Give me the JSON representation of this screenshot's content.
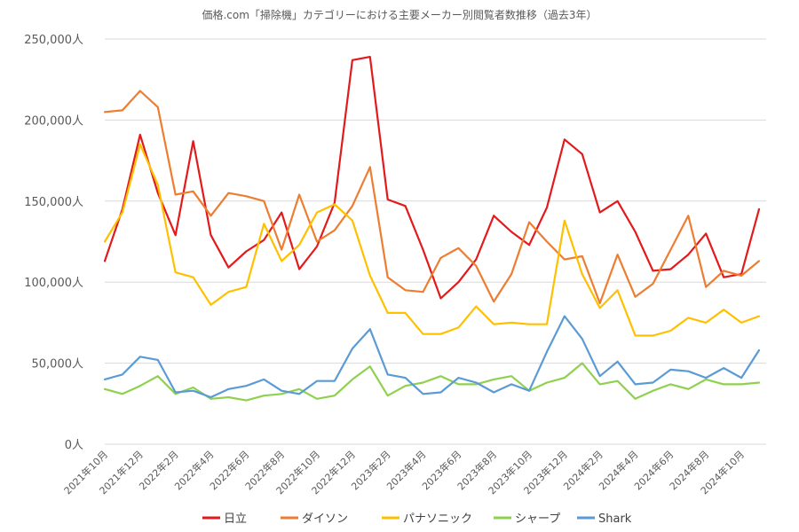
{
  "chart_data": {
    "type": "line",
    "title": "価格.com「掃除機」カテゴリーにおける主要メーカー別閲覧者数推移（過去3年）",
    "xlabel": "",
    "ylabel": "",
    "ylim": [
      0,
      250000
    ],
    "ytick_labels": [
      "0人",
      "50,000人",
      "100,000人",
      "150,000人",
      "200,000人",
      "250,000人"
    ],
    "ytick_values": [
      0,
      50000,
      100000,
      150000,
      200000,
      250000
    ],
    "grid": true,
    "legend_position": "bottom",
    "xtick_labels": [
      "2021年10月",
      "2021年12月",
      "2022年2月",
      "2022年4月",
      "2022年6月",
      "2022年8月",
      "2022年10月",
      "2022年12月",
      "2023年2月",
      "2023年4月",
      "2023年6月",
      "2023年8月",
      "2023年10月",
      "2023年12月",
      "2024年2月",
      "2024年4月",
      "2024年6月",
      "2024年8月",
      "2024年10月"
    ],
    "x": [
      "2021-10",
      "2021-11",
      "2021-12",
      "2022-01",
      "2022-02",
      "2022-03",
      "2022-04",
      "2022-05",
      "2022-06",
      "2022-07",
      "2022-08",
      "2022-09",
      "2022-10",
      "2022-11",
      "2022-12",
      "2023-01",
      "2023-02",
      "2023-03",
      "2023-04",
      "2023-05",
      "2023-06",
      "2023-07",
      "2023-08",
      "2023-09",
      "2023-10",
      "2023-11",
      "2023-12",
      "2024-01",
      "2024-02",
      "2024-03",
      "2024-04",
      "2024-05",
      "2024-06",
      "2024-07",
      "2024-08",
      "2024-09",
      "2024-10",
      "2024-11"
    ],
    "series": [
      {
        "name": "日立",
        "color": "#e31a1c",
        "values": [
          113000,
          145000,
          191000,
          155000,
          129000,
          187000,
          129000,
          109000,
          119000,
          126000,
          143000,
          108000,
          122000,
          149000,
          237000,
          239000,
          151000,
          147000,
          120000,
          90000,
          100000,
          114000,
          141000,
          131000,
          123000,
          146000,
          188000,
          179000,
          143000,
          150000,
          131000,
          107000,
          108000,
          117000,
          130000,
          103000,
          105000,
          145000
        ]
      },
      {
        "name": "ダイソン",
        "color": "#ed7d31",
        "values": [
          205000,
          206000,
          218000,
          208000,
          154000,
          156000,
          141000,
          155000,
          153000,
          150000,
          120000,
          154000,
          125000,
          132000,
          147000,
          171000,
          103000,
          95000,
          94000,
          115000,
          121000,
          110000,
          88000,
          105000,
          137000,
          125000,
          114000,
          116000,
          87000,
          117000,
          91000,
          99000,
          120000,
          141000,
          97000,
          107000,
          104000,
          113000
        ]
      },
      {
        "name": "パナソニック",
        "color": "#ffc000",
        "values": [
          125000,
          143000,
          185000,
          160000,
          106000,
          103000,
          86000,
          94000,
          97000,
          136000,
          113000,
          123000,
          143000,
          148000,
          138000,
          104000,
          81000,
          81000,
          68000,
          68000,
          72000,
          85000,
          74000,
          75000,
          74000,
          74000,
          138000,
          105000,
          84000,
          95000,
          67000,
          67000,
          70000,
          78000,
          75000,
          83000,
          75000,
          79000
        ]
      },
      {
        "name": "シャープ",
        "color": "#8fd14f",
        "values": [
          34000,
          31000,
          36000,
          42000,
          31000,
          35000,
          28000,
          29000,
          27000,
          30000,
          31000,
          34000,
          28000,
          30000,
          40000,
          48000,
          30000,
          36000,
          38000,
          42000,
          37000,
          37000,
          40000,
          42000,
          33000,
          38000,
          41000,
          50000,
          37000,
          39000,
          28000,
          33000,
          37000,
          34000,
          40000,
          37000,
          37000,
          38000
        ]
      },
      {
        "name": "Shark",
        "color": "#5b9bd5",
        "values": [
          40000,
          43000,
          54000,
          52000,
          32000,
          33000,
          29000,
          34000,
          36000,
          40000,
          33000,
          31000,
          39000,
          39000,
          59000,
          71000,
          43000,
          41000,
          31000,
          32000,
          41000,
          38000,
          32000,
          37000,
          33000,
          57000,
          79000,
          65000,
          42000,
          51000,
          37000,
          38000,
          46000,
          45000,
          41000,
          47000,
          41000,
          58000
        ]
      }
    ]
  }
}
